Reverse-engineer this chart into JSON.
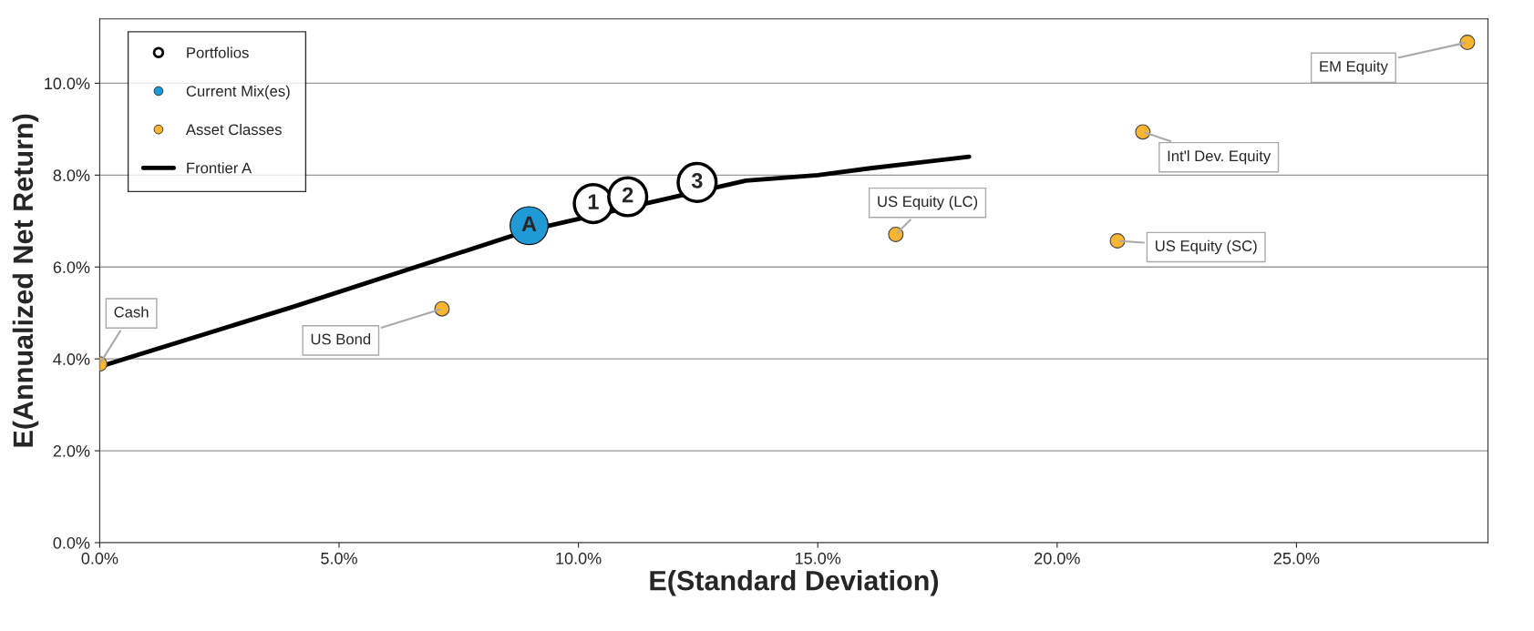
{
  "chart_data": {
    "type": "scatter",
    "xlabel": "E(Standard Deviation)",
    "ylabel": "E(Annualized Net Return)",
    "xlim": [
      0,
      29
    ],
    "ylim": [
      0,
      11.4
    ],
    "xticks": [
      {
        "value": 0,
        "label": "0.0%"
      },
      {
        "value": 5,
        "label": "5.0%"
      },
      {
        "value": 10,
        "label": "10.0%"
      },
      {
        "value": 15,
        "label": "15.0%"
      },
      {
        "value": 20,
        "label": "20.0%"
      },
      {
        "value": 25,
        "label": "25.0%"
      }
    ],
    "yticks": [
      {
        "value": 0,
        "label": "0.0%"
      },
      {
        "value": 2,
        "label": "2.0%"
      },
      {
        "value": 4,
        "label": "4.0%"
      },
      {
        "value": 6,
        "label": "6.0%"
      },
      {
        "value": 8,
        "label": "8.0%"
      },
      {
        "value": 10,
        "label": "10.0%"
      }
    ],
    "grid": "y",
    "legend": "top left",
    "series": [
      {
        "name": "Portfolios",
        "color": "#ffffff",
        "x": [
          10.31,
          11.03,
          12.48
        ],
        "values": [
          7.38,
          7.53,
          7.84
        ]
      },
      {
        "name": "Current Mix(es)",
        "color": "#1f9ad6",
        "x": [
          8.97
        ],
        "values": [
          6.9
        ]
      },
      {
        "name": "Asset Classes",
        "color": "#f7b531",
        "x": [
          0,
          7.15,
          16.63,
          21.26,
          21.79,
          28.57
        ],
        "values": [
          3.89,
          5.09,
          6.71,
          6.57,
          8.94,
          10.89
        ]
      },
      {
        "name": "Frontier A",
        "type": "line",
        "color": "#000000",
        "x": [
          0,
          4.06,
          8.97,
          13.5,
          15.0,
          16.1,
          18.16
        ],
        "values": [
          3.83,
          5.14,
          6.8,
          7.88,
          8.0,
          8.15,
          8.4
        ]
      }
    ],
    "annotations": [
      {
        "text": "1",
        "x": 10.31,
        "y": 7.38
      },
      {
        "text": "2",
        "x": 11.03,
        "y": 7.53
      },
      {
        "text": "3",
        "x": 12.48,
        "y": 7.84
      },
      {
        "text": "A",
        "x": 8.97,
        "y": 6.9
      },
      {
        "text": "Cash",
        "x": 0,
        "y": 3.89
      },
      {
        "text": "US Bond",
        "x": 7.15,
        "y": 5.09
      },
      {
        "text": "US Equity (LC)",
        "x": 16.63,
        "y": 6.71
      },
      {
        "text": "US Equity (SC)",
        "x": 21.26,
        "y": 6.57
      },
      {
        "text": "Int'l Dev. Equity",
        "x": 21.79,
        "y": 8.94
      },
      {
        "text": "EM Equity",
        "x": 28.57,
        "y": 10.89
      }
    ]
  }
}
